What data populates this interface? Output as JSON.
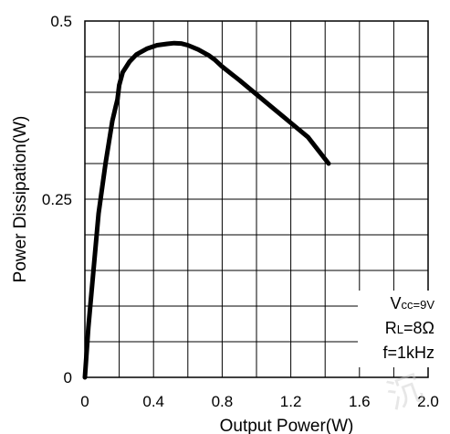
{
  "chart_data": {
    "type": "line",
    "xlabel": "Output Power(W)",
    "ylabel": "Power Dissipation(W)",
    "xlim": [
      0,
      2.0
    ],
    "ylim": [
      0,
      0.5
    ],
    "x_ticks": [
      "0",
      "0.4",
      "0.8",
      "1.2",
      "1.6",
      "2.0"
    ],
    "x_tick_values": [
      0,
      0.4,
      0.8,
      1.2,
      1.6,
      2.0
    ],
    "y_ticks": [
      "0",
      "0.25",
      "0.5"
    ],
    "y_tick_values": [
      0,
      0.25,
      0.5
    ],
    "x_gridlines": [
      0.2,
      0.4,
      0.6,
      0.8,
      1.0,
      1.2,
      1.4,
      1.6,
      1.8
    ],
    "y_gridlines": [
      0.05,
      0.1,
      0.15,
      0.2,
      0.25,
      0.3,
      0.35,
      0.4,
      0.45
    ],
    "grid": true,
    "series": [
      {
        "x": [
          0,
          0.02,
          0.05,
          0.08,
          0.12,
          0.16,
          0.18,
          0.19,
          0.2,
          0.22,
          0.26,
          0.3,
          0.36,
          0.42,
          0.48,
          0.52,
          0.56,
          0.6,
          0.66,
          0.72,
          0.76,
          0.8,
          0.9,
          1.0,
          1.1,
          1.2,
          1.3,
          1.42
        ],
        "y": [
          0,
          0.07,
          0.15,
          0.23,
          0.3,
          0.36,
          0.38,
          0.39,
          0.41,
          0.428,
          0.443,
          0.453,
          0.461,
          0.466,
          0.468,
          0.469,
          0.4685,
          0.466,
          0.46,
          0.452,
          0.445,
          0.436,
          0.417,
          0.397,
          0.377,
          0.357,
          0.337,
          0.3
        ]
      }
    ],
    "annotations": {
      "vcc": "Vcc=9V",
      "rl": "RL=8Ω",
      "freq": "f=1kHz"
    }
  },
  "annotation_parts": {
    "vcc_main": "V",
    "vcc_rest": "cc=9V",
    "rl_main": "R",
    "rl_sub": "L",
    "rl_rest": "=8Ω",
    "freq": "f=1kHz"
  },
  "watermark": "沉"
}
